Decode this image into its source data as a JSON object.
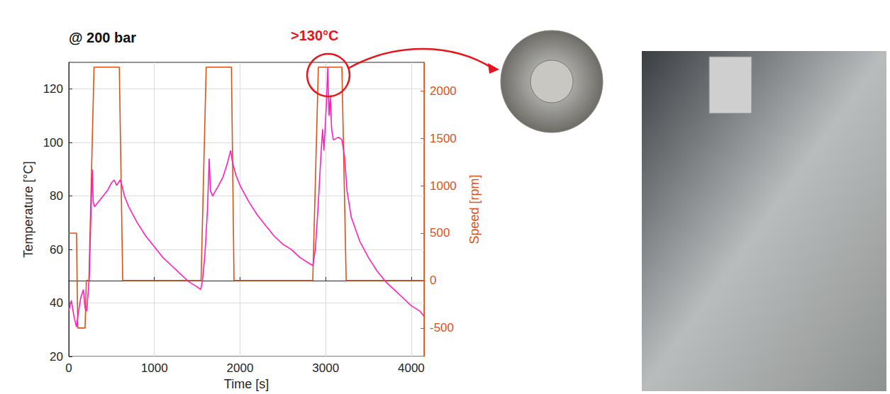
{
  "chart_data": {
    "type": "line",
    "title": "@ 200 bar",
    "annotation": ">130°C",
    "xlabel": "Time [s]",
    "ylabel": "Temperature [°C]",
    "y2label": "Speed [rpm]",
    "xlim": [
      0,
      4150
    ],
    "xticks": [
      0,
      1000,
      2000,
      3000,
      4000
    ],
    "ylim": [
      20,
      130
    ],
    "yticks": [
      20,
      40,
      60,
      80,
      100,
      120
    ],
    "y2lim": [
      -800,
      2300
    ],
    "y2ticks": [
      -500,
      0,
      500,
      1000,
      1500,
      2000
    ],
    "grid": true,
    "series": [
      {
        "color": "#ff1fbf",
        "axis": "y",
        "x": [
          0,
          30,
          60,
          90,
          110,
          140,
          170,
          190,
          210,
          240,
          260,
          275,
          285,
          300,
          350,
          400,
          450,
          500,
          530,
          560,
          600,
          620,
          650,
          700,
          800,
          900,
          1000,
          1100,
          1200,
          1300,
          1400,
          1500,
          1540,
          1560,
          1590,
          1620,
          1640,
          1655,
          1680,
          1750,
          1800,
          1850,
          1890,
          1910,
          1950,
          2000,
          2100,
          2200,
          2300,
          2400,
          2500,
          2600,
          2700,
          2800,
          2850,
          2880,
          2910,
          2950,
          2965,
          2980,
          3010,
          3025,
          3040,
          3055,
          3070,
          3090,
          3150,
          3190,
          3220,
          3250,
          3300,
          3400,
          3500,
          3600,
          3700,
          3800,
          3900,
          4000,
          4100,
          4150
        ],
        "values": [
          37,
          41,
          35,
          31,
          36,
          42,
          45,
          38,
          37,
          50,
          75,
          90,
          78,
          76,
          78,
          80,
          82,
          85,
          86,
          84,
          86,
          84,
          80,
          76,
          70,
          65,
          61,
          57,
          54,
          51,
          48,
          46,
          45,
          48,
          58,
          75,
          94,
          82,
          80,
          84,
          87,
          92,
          97,
          93,
          88,
          84,
          78,
          73,
          69,
          65,
          62,
          60,
          57,
          55,
          54,
          60,
          75,
          98,
          105,
          97,
          115,
          128,
          110,
          117,
          105,
          101,
          102,
          101,
          95,
          82,
          72,
          63,
          57,
          52,
          48,
          45,
          42,
          39,
          37,
          35
        ]
      },
      {
        "color": "#d95319",
        "axis": "y2",
        "x": [
          0,
          90,
          105,
          190,
          205,
          235,
          295,
          590,
          630,
          1545,
          1605,
          1900,
          1930,
          2850,
          2915,
          3190,
          3240,
          4150
        ],
        "values": [
          500,
          500,
          -500,
          -500,
          0,
          0,
          2250,
          2250,
          0,
          0,
          2250,
          2250,
          0,
          0,
          2250,
          2250,
          0,
          0
        ]
      }
    ]
  }
}
